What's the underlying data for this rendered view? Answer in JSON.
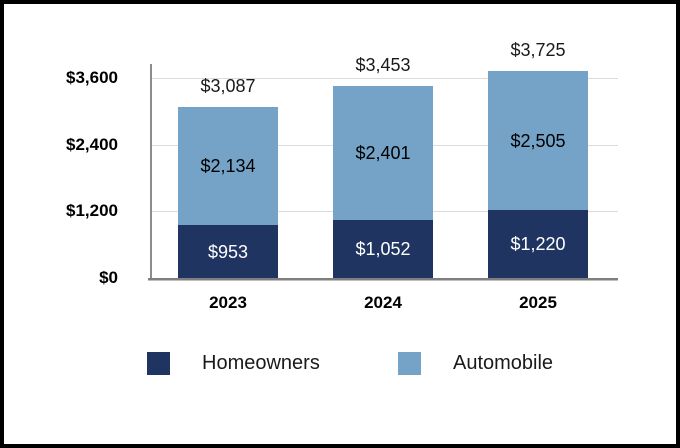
{
  "frame": {
    "background_color": "#ffffff",
    "border_color": "#000000"
  },
  "chart_data": {
    "type": "bar",
    "stacked": true,
    "title": "",
    "xlabel": "",
    "ylabel": "",
    "categories": [
      "2023",
      "2024",
      "2025"
    ],
    "series": [
      {
        "name": "Homeowners",
        "color": "#1f3461",
        "label_color": "#ffffff",
        "values": [
          953,
          1052,
          1220
        ],
        "value_labels": [
          "$953",
          "$1,052",
          "$1,220"
        ]
      },
      {
        "name": "Automobile",
        "color": "#74a3c7",
        "label_color": "#000000",
        "values": [
          2134,
          2401,
          2505
        ],
        "value_labels": [
          "$2,134",
          "$2,401",
          "$2,505"
        ]
      }
    ],
    "totals": [
      3087,
      3453,
      3725
    ],
    "total_labels": [
      "$3,087",
      "$3,453",
      "$3,725"
    ],
    "y_axis": {
      "max": 3600,
      "ticks": [
        0,
        1200,
        2400,
        3600
      ],
      "tick_labels": [
        "$0",
        "$1,200",
        "$2,400",
        "$3,600"
      ]
    },
    "grid": true,
    "legend_position": "bottom",
    "legend": [
      {
        "label": "Homeowners",
        "color": "#1f3461"
      },
      {
        "label": "Automobile",
        "color": "#74a3c7"
      }
    ],
    "colors": {
      "gridline": "#dcdcdc",
      "axis": "#7f7f7f",
      "total_label_text": "#1a1a1a",
      "axis_label_text": "#000000"
    }
  }
}
